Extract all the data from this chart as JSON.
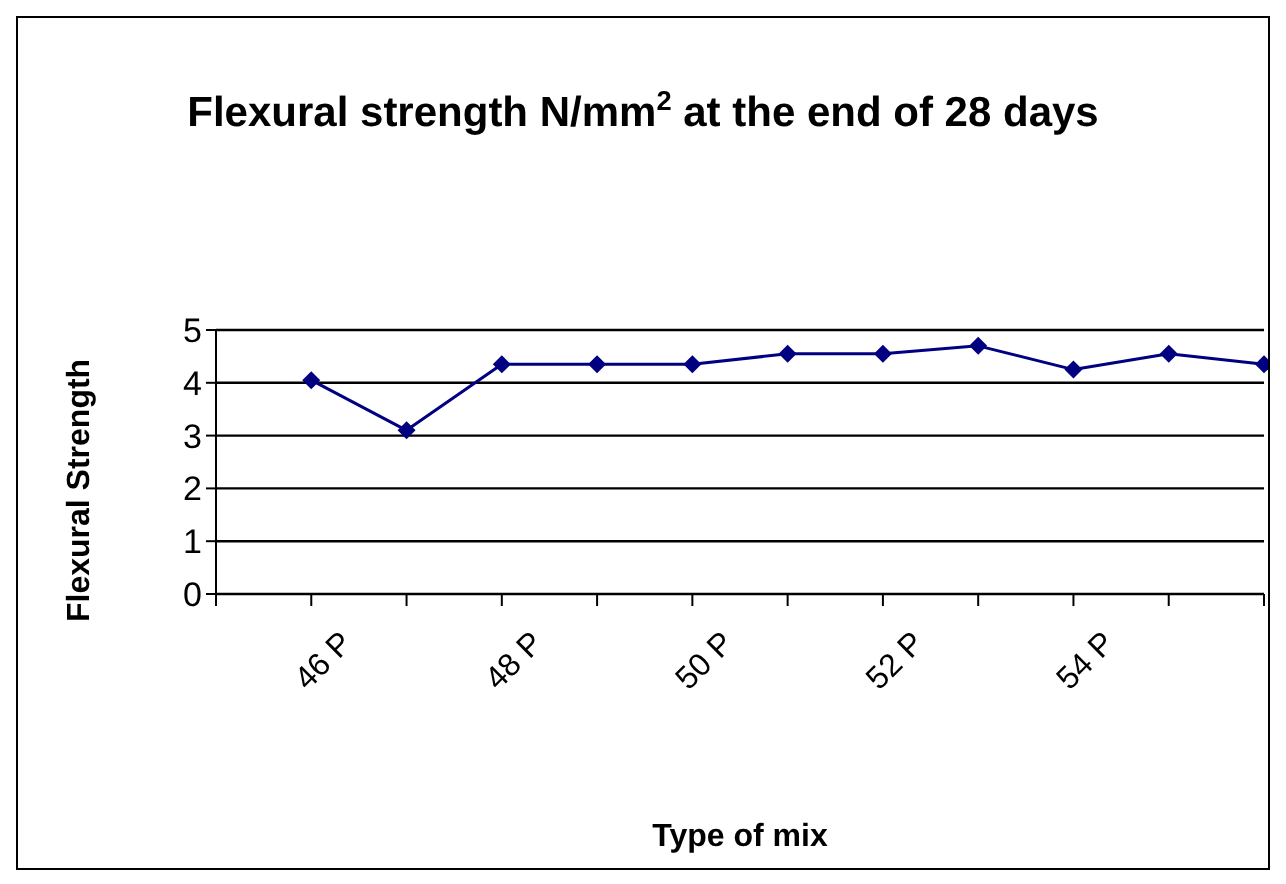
{
  "chart_data": {
    "type": "line",
    "title": "Flexural strength N/mm$^{2}$ at the end of 28 days",
    "xlabel": "Type of mix",
    "ylabel": "Flexural Strength",
    "categories": [
      null,
      "46  P",
      null,
      "48 P",
      null,
      "50 P",
      null,
      "52 P",
      null,
      "54 P",
      null,
      null
    ],
    "series": [
      {
        "color": "#000080",
        "values": [
          null,
          4.05,
          3.1,
          4.35,
          4.35,
          4.35,
          4.55,
          4.55,
          4.7,
          4.25,
          4.55,
          4.35
        ]
      }
    ],
    "ylim": [
      0,
      5
    ],
    "yticks": [
      0,
      1,
      2,
      3,
      4,
      5
    ],
    "grid": "y",
    "legend": false,
    "marker": "diamond",
    "line_style": "solid"
  }
}
